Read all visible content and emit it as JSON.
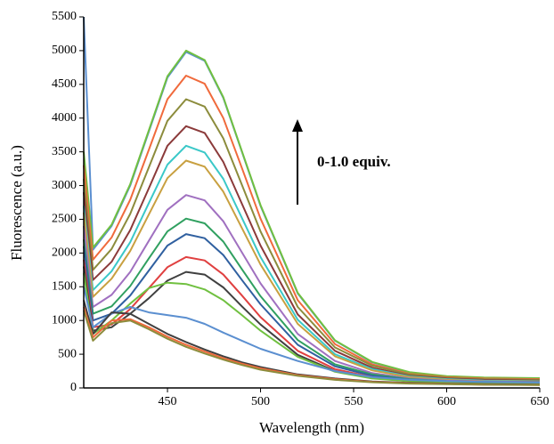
{
  "chart_data": {
    "type": "line",
    "x_label": "Wavelength (nm)",
    "y_label": "Fluorescence (a.u.)",
    "annotation": "0-1.0 equiv.",
    "xlim": [
      405,
      650
    ],
    "ylim": [
      0,
      5500
    ],
    "xticks": [
      450,
      500,
      550,
      600,
      650
    ],
    "yticks": [
      0,
      500,
      1000,
      1500,
      2000,
      2500,
      3000,
      3500,
      4000,
      4500,
      5000,
      5500
    ],
    "x": [
      405,
      410,
      420,
      430,
      440,
      450,
      460,
      470,
      480,
      490,
      500,
      520,
      540,
      560,
      580,
      600,
      620,
      650
    ],
    "series": [
      {
        "color": "#5b8fd0",
        "values": [
          5500,
          2050,
          2400,
          3000,
          3800,
          4600,
          4980,
          4850,
          4300,
          3500,
          2700,
          1400,
          700,
          380,
          230,
          170,
          150,
          140
        ]
      },
      {
        "color": "#70c040",
        "values": [
          3500,
          2080,
          2420,
          3020,
          3820,
          4620,
          5000,
          4860,
          4310,
          3510,
          2710,
          1410,
          705,
          385,
          235,
          175,
          155,
          145
        ]
      },
      {
        "color": "#f06a3c",
        "values": [
          3300,
          1900,
          2230,
          2790,
          3530,
          4280,
          4630,
          4510,
          4000,
          3260,
          2510,
          1300,
          650,
          350,
          210,
          160,
          140,
          130
        ]
      },
      {
        "color": "#8c8c3c",
        "values": [
          3100,
          1750,
          2060,
          2580,
          3270,
          3960,
          4280,
          4170,
          3700,
          3010,
          2320,
          1200,
          600,
          330,
          200,
          150,
          130,
          120
        ]
      },
      {
        "color": "#8b3a3a",
        "values": [
          2900,
          1600,
          1870,
          2340,
          2960,
          3590,
          3880,
          3780,
          3350,
          2730,
          2110,
          1090,
          550,
          300,
          180,
          140,
          120,
          110
        ]
      },
      {
        "color": "#3ac8c8",
        "values": [
          2700,
          1450,
          1730,
          2160,
          2740,
          3310,
          3590,
          3490,
          3100,
          2520,
          1940,
          1010,
          500,
          280,
          170,
          130,
          110,
          100
        ]
      },
      {
        "color": "#c8a040",
        "values": [
          2600,
          1350,
          1620,
          2030,
          2570,
          3110,
          3370,
          3280,
          2910,
          2370,
          1830,
          950,
          470,
          260,
          160,
          120,
          100,
          95
        ]
      },
      {
        "color": "#a070c0",
        "values": [
          2400,
          1200,
          1380,
          1720,
          2180,
          2640,
          2860,
          2780,
          2470,
          2010,
          1550,
          800,
          400,
          220,
          140,
          110,
          95,
          90
        ]
      },
      {
        "color": "#30a060",
        "values": [
          2200,
          1100,
          1210,
          1510,
          1920,
          2320,
          2510,
          2440,
          2170,
          1760,
          1360,
          710,
          350,
          200,
          130,
          100,
          90,
          85
        ]
      },
      {
        "color": "#3060a0",
        "values": [
          2100,
          1000,
          1100,
          1370,
          1740,
          2110,
          2280,
          2220,
          1970,
          1600,
          1240,
          640,
          320,
          180,
          120,
          95,
          85,
          80
        ]
      },
      {
        "color": "#e04040",
        "values": [
          1900,
          900,
          940,
          1170,
          1480,
          1790,
          1940,
          1890,
          1680,
          1370,
          1050,
          550,
          280,
          160,
          110,
          90,
          80,
          75
        ]
      },
      {
        "color": "#404040",
        "values": [
          1800,
          850,
          900,
          1100,
          1330,
          1590,
          1720,
          1680,
          1490,
          1210,
          940,
          490,
          250,
          150,
          100,
          85,
          75,
          70
        ]
      },
      {
        "color": "#70c040",
        "values": [
          1700,
          800,
          1000,
          1250,
          1480,
          1560,
          1540,
          1460,
          1300,
          1080,
          850,
          460,
          240,
          140,
          100,
          80,
          70,
          65
        ]
      },
      {
        "color": "#5b8fd0",
        "values": [
          1500,
          900,
          1100,
          1200,
          1120,
          1080,
          1040,
          950,
          820,
          700,
          580,
          400,
          250,
          160,
          120,
          100,
          90,
          80
        ]
      },
      {
        "color": "#404040",
        "values": [
          1300,
          800,
          1120,
          1100,
          950,
          800,
          680,
          570,
          470,
          380,
          310,
          200,
          140,
          95,
          75,
          65,
          55,
          50
        ]
      },
      {
        "color": "#f06a3c",
        "values": [
          1200,
          750,
          1000,
          1020,
          900,
          760,
          640,
          540,
          440,
          360,
          290,
          190,
          130,
          90,
          70,
          60,
          50,
          45
        ]
      },
      {
        "color": "#8c8c3c",
        "values": [
          1150,
          700,
          960,
          1000,
          870,
          730,
          610,
          510,
          420,
          340,
          270,
          180,
          120,
          85,
          65,
          55,
          48,
          42
        ]
      }
    ]
  }
}
